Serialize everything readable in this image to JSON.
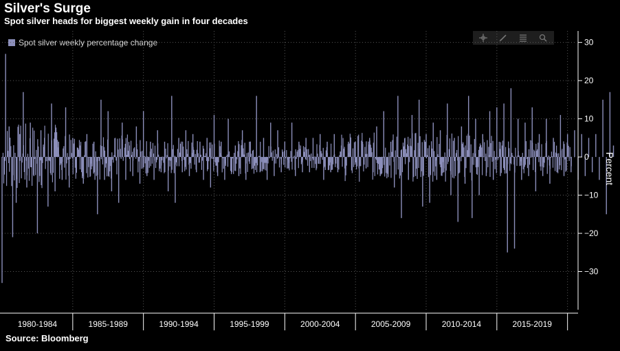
{
  "header": {
    "title": "Silver's Surge",
    "subtitle": "Spot silver heads for biggest weekly gain in four decades"
  },
  "footer": {
    "source": "Source: Bloomberg"
  },
  "toolbar": {
    "icons": [
      "crosshair-icon",
      "pencil-icon",
      "list-icon",
      "zoom-icon"
    ]
  },
  "colors": {
    "background": "#000000",
    "bar": "#8c8fbb",
    "grid": "#5a5a5a",
    "text": "#ffffff"
  },
  "chart_data": {
    "type": "bar",
    "title": "Silver's Surge",
    "subtitle": "Spot silver heads for biggest weekly gain in four decades",
    "ylabel": "Percent",
    "xlabel": "",
    "ylim": [
      -40,
      33
    ],
    "yticks": [
      30,
      20,
      10,
      0,
      -10,
      -20,
      -30
    ],
    "grid": true,
    "legend_position": "top-left",
    "x_categories": [
      "1980-1984",
      "1985-1989",
      "1990-1994",
      "1995-1999",
      "2000-2004",
      "2005-2009",
      "2010-2014",
      "2015-2019"
    ],
    "series": [
      {
        "name": "Spot silver weekly percentage change",
        "color": "#8c8fbb",
        "x_start": 1980.0,
        "x_end": 2020.25,
        "x_step": 0.25,
        "values": [
          -33,
          27,
          8,
          -21,
          -12,
          6,
          17,
          -8,
          9,
          -5,
          -20,
          7,
          5,
          -13,
          14,
          -9,
          4,
          -6,
          13,
          -8,
          5,
          -4,
          3,
          -7,
          6,
          -5,
          4,
          -15,
          15,
          -6,
          12,
          -9,
          5,
          -12,
          9,
          -6,
          3,
          -5,
          8,
          -7,
          12,
          -5,
          4,
          -6,
          7,
          -4,
          4,
          -9,
          16,
          -12,
          5,
          -4,
          7,
          -5,
          6,
          -4,
          4,
          -6,
          5,
          -8,
          11,
          -5,
          4,
          -6,
          10,
          -4,
          3,
          -5,
          7,
          -6,
          4,
          -3,
          16,
          -4,
          5,
          -6,
          9,
          -5,
          7,
          -4,
          4,
          -3,
          9,
          -5,
          4,
          -4,
          5,
          -4,
          5,
          -3,
          6,
          -6,
          4,
          -4,
          6,
          -4,
          3,
          -3,
          4,
          -3,
          4,
          -3,
          4,
          -3,
          5,
          -4,
          8,
          -5,
          12,
          -4,
          4,
          -8,
          16,
          -16,
          5,
          -6,
          11,
          -5,
          15,
          -13,
          6,
          -12,
          9,
          -6,
          7,
          -4,
          14,
          -10,
          5,
          -17,
          8,
          -7,
          16,
          -16,
          10,
          -10,
          6,
          -5,
          12,
          -6,
          13,
          -5,
          14,
          -25,
          18,
          -24,
          10,
          -6,
          9,
          -5,
          13,
          -9,
          6,
          -5,
          10,
          -7,
          5,
          -4,
          11,
          -5,
          6,
          -4,
          7,
          -6,
          6,
          -5,
          5,
          -4,
          6,
          -6,
          15,
          -15,
          17,
          3
        ]
      }
    ]
  }
}
